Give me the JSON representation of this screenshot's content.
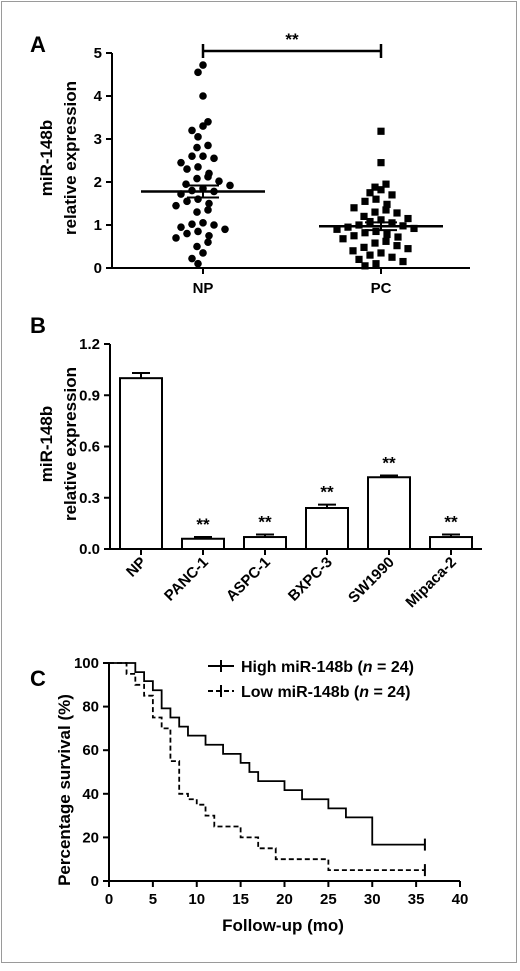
{
  "figure": {
    "panels": [
      {
        "letter": "A"
      },
      {
        "letter": "B"
      },
      {
        "letter": "C"
      }
    ]
  },
  "chart_data": [
    {
      "panel": "A",
      "type": "scatter",
      "ylabel_line1": "miR-148b",
      "ylabel_line2": "relative expression",
      "categories": [
        "NP",
        "PC"
      ],
      "ylim": [
        0,
        5
      ],
      "yticks": [
        0,
        1,
        2,
        3,
        4,
        5
      ],
      "significance": "**",
      "series": [
        {
          "category": "NP",
          "marker": "circle",
          "mean": 1.78,
          "sem": 0.14,
          "values": [
            4.72,
            4.55,
            4.0,
            3.4,
            3.3,
            3.2,
            3.05,
            2.85,
            2.8,
            2.6,
            2.6,
            2.55,
            2.45,
            2.35,
            2.3,
            2.2,
            2.12,
            2.08,
            2.02,
            1.95,
            1.92,
            1.85,
            1.8,
            1.78,
            1.72,
            1.6,
            1.55,
            1.5,
            1.45,
            1.35,
            1.3,
            1.05,
            1.02,
            1.0,
            0.95,
            0.9,
            0.85,
            0.8,
            0.75,
            0.7,
            0.6,
            0.5,
            0.35,
            0.22,
            0.1
          ]
        },
        {
          "category": "PC",
          "marker": "square",
          "mean": 0.97,
          "sem": 0.09,
          "values": [
            3.18,
            2.45,
            1.95,
            1.88,
            1.82,
            1.75,
            1.7,
            1.6,
            1.55,
            1.48,
            1.4,
            1.35,
            1.3,
            1.28,
            1.2,
            1.15,
            1.12,
            1.08,
            1.05,
            1.0,
            0.98,
            0.95,
            0.92,
            0.9,
            0.85,
            0.82,
            0.78,
            0.75,
            0.72,
            0.68,
            0.62,
            0.58,
            0.52,
            0.48,
            0.45,
            0.4,
            0.35,
            0.3,
            0.25,
            0.2,
            0.15,
            0.1,
            0.05
          ]
        }
      ]
    },
    {
      "panel": "B",
      "type": "bar",
      "ylabel_line1": "miR-148b",
      "ylabel_line2": "relative expression",
      "categories": [
        "NP",
        "PANC-1",
        "ASPC-1",
        "BXPC-3",
        "SW1990",
        "Mipaca-2"
      ],
      "values": [
        1.0,
        0.06,
        0.07,
        0.24,
        0.42,
        0.07
      ],
      "errors": [
        0.03,
        0.01,
        0.015,
        0.02,
        0.01,
        0.015
      ],
      "significance": [
        "",
        "**",
        "**",
        "**",
        "**",
        "**"
      ],
      "ylim": [
        0,
        1.2
      ],
      "yticks": [
        "0.0",
        "0.3",
        "0.6",
        "0.9",
        "1.2"
      ]
    },
    {
      "panel": "C",
      "type": "line",
      "xlabel": "Follow-up (mo)",
      "ylabel": "Percentage survival (%)",
      "xlim": [
        0,
        40
      ],
      "ylim": [
        0,
        100
      ],
      "xticks": [
        0,
        5,
        10,
        15,
        20,
        25,
        30,
        35,
        40
      ],
      "yticks": [
        0,
        20,
        40,
        60,
        80,
        100
      ],
      "series": [
        {
          "name": "High miR-148b",
          "n_label": "n",
          "n_value": "= 24)",
          "style": "solid",
          "x": [
            0,
            3,
            4,
            5,
            6,
            7,
            8,
            9,
            10,
            11,
            12,
            13,
            14,
            15,
            16,
            17,
            18,
            20,
            22,
            25,
            27,
            30,
            36
          ],
          "y": [
            100,
            95.8,
            91.7,
            87.5,
            79.2,
            75,
            70.8,
            66.7,
            66.7,
            62.5,
            62.5,
            58.3,
            58.3,
            54.2,
            50,
            45.8,
            45.8,
            41.7,
            37.5,
            33.3,
            29.2,
            16.7,
            16.7
          ]
        },
        {
          "name": "Low miR-148b",
          "n_label": "n",
          "n_value": "= 24)",
          "style": "dashed",
          "x": [
            0,
            2,
            3,
            4,
            5,
            6,
            7,
            8,
            9,
            10,
            11,
            12,
            13,
            14,
            15,
            17,
            18,
            19,
            20,
            25,
            36
          ],
          "y": [
            100,
            95,
            90,
            85,
            75,
            70,
            55,
            40,
            37.5,
            35,
            30,
            25,
            25,
            25,
            20,
            15,
            15,
            10,
            10,
            5,
            5
          ]
        }
      ]
    }
  ]
}
